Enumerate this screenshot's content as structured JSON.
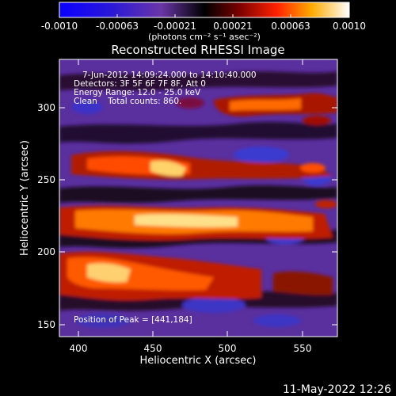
{
  "colorbar": {
    "ticks": [
      "-0.0010",
      "-0.00063",
      "-0.00021",
      "0.00021",
      "0.00063",
      "0.0010"
    ],
    "units": "(photons cm⁻² s⁻¹ asec⁻²)"
  },
  "plot": {
    "title": "Reconstructed RHESSI Image",
    "xlabel": "Heliocentric X (arcsec)",
    "ylabel": "Heliocentric Y (arcsec)",
    "x_ticks": [
      "400",
      "450",
      "500",
      "550"
    ],
    "y_ticks": [
      "150",
      "200",
      "250",
      "300"
    ],
    "info_lines": [
      "7-Jun-2012 14:09:24.000 to 14:10:40.000",
      "Detectors: 3F 5F 6F 7F 8F, Att 0",
      "Energy Range: 12.0 - 25.0 keV",
      "Clean    Total counts: 860."
    ],
    "peak_text": "Position of Peak = [441,184]"
  },
  "footer": {
    "date": "11-May-2022 12:26"
  }
}
